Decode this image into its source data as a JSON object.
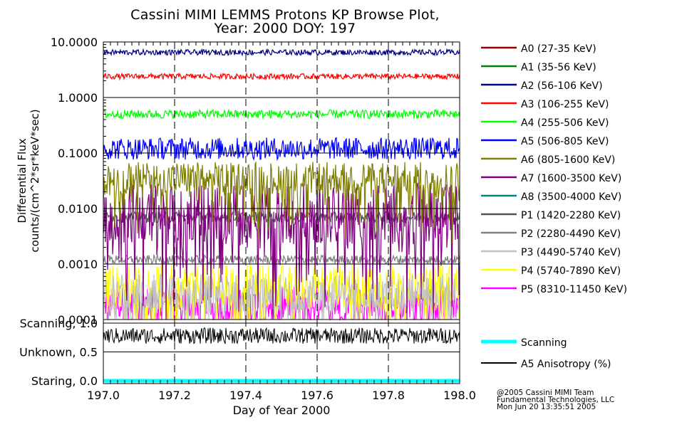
{
  "chart_data": {
    "type": "line",
    "title": "Cassini MIMI LEMMS Protons KP Browse Plot,",
    "subtitle": "Year: 2000 DOY: 197",
    "xlabel": "Day of Year 2000",
    "ylabel_line1": "Differential Flux",
    "ylabel_line2": "counts/(cm^2*sr*keV*sec)",
    "xlim": [
      197.0,
      198.0
    ],
    "x_ticks": [
      "197.0",
      "197.2",
      "197.4",
      "197.6",
      "197.8",
      "198.0"
    ],
    "flux_panel": {
      "scale": "log",
      "ylim": [
        0.0001,
        10
      ],
      "y_ticks": [
        "10.0000",
        "1.0000",
        "0.1000",
        "0.0100",
        "0.0010",
        "0.0001"
      ],
      "series": [
        {
          "name": "A0 (27-35 KeV)",
          "color": "#8b0000",
          "level": null,
          "noise": 0
        },
        {
          "name": "A1 (35-56 KeV)",
          "color": "#008000",
          "level": null,
          "noise": 0
        },
        {
          "name": "A2 (56-106 KeV)",
          "color": "#000080",
          "level": 6.5,
          "noise": 0.05
        },
        {
          "name": "A3 (106-255 KeV)",
          "color": "#ff0000",
          "level": 2.4,
          "noise": 0.05
        },
        {
          "name": "A4 (255-506 KeV)",
          "color": "#00ff00",
          "level": 0.5,
          "noise": 0.08
        },
        {
          "name": "A5 (506-805 KeV)",
          "color": "#0000ff",
          "level": 0.12,
          "noise": 0.2
        },
        {
          "name": "A6 (805-1600 KeV)",
          "color": "#808000",
          "level": 0.035,
          "noise": 0.3
        },
        {
          "name": "A7 (1600-3500 KeV)",
          "color": "#800080",
          "level": 0.008,
          "noise": 0.55
        },
        {
          "name": "A8 (3500-4000 KeV)",
          "color": "#008080",
          "level": null,
          "noise": 0
        },
        {
          "name": "P1 (1420-2280 KeV)",
          "color": "#555555",
          "level": 0.007,
          "noise": 0.1
        },
        {
          "name": "P2 (2280-4490 KeV)",
          "color": "#808080",
          "level": 0.0012,
          "noise": 0.08
        },
        {
          "name": "P3 (4490-5740 KeV)",
          "color": "#c0c0c0",
          "level": 0.0003,
          "noise": 0.35
        },
        {
          "name": "P4 (5740-7890 KeV)",
          "color": "#ffff00",
          "level": 0.0004,
          "noise": 0.4
        },
        {
          "name": "P5 (8310-11450 KeV)",
          "color": "#ff00ff",
          "level": 0.0002,
          "noise": 0.3
        }
      ]
    },
    "mode_panel": {
      "y_ticks": [
        "Scanning, 1.0",
        "Unknown, 0.5",
        "Staring, 0.0"
      ],
      "ylim": [
        0,
        1
      ],
      "series": [
        {
          "name": "Scanning",
          "color": "#00ffff",
          "level": 0.0
        },
        {
          "name": "A5 Anisotropy (%)",
          "color": "#000000",
          "level": 0.78
        }
      ]
    }
  },
  "credits": [
    "@2005 Cassini MIMI Team",
    "Fundamental Technologies, LLC",
    "Mon Jun 20 13:35:51 2005"
  ]
}
